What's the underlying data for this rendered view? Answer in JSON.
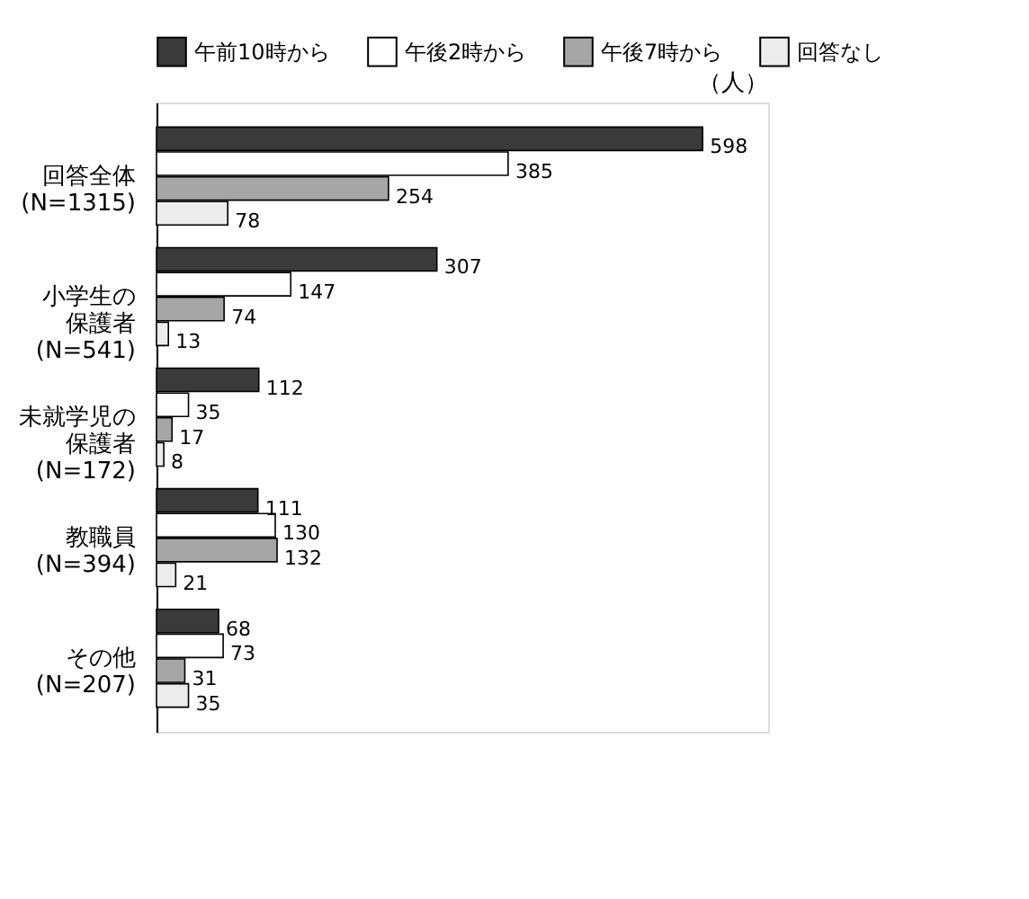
{
  "chart_data": {
    "type": "bar",
    "orientation": "horizontal",
    "categories": [
      "回答全体(N=1315)",
      "小学生の保護者(N=541)",
      "未就学児の保護者(N=172)",
      "教職員(N=394)",
      "その他(N=207)"
    ],
    "series": [
      {
        "name": "午前10時から",
        "color": "#3a3a3a",
        "values": [
          598,
          307,
          112,
          111,
          68
        ]
      },
      {
        "name": "午後2時から",
        "color": "#ffffff",
        "values": [
          385,
          147,
          35,
          130,
          73
        ]
      },
      {
        "name": "午後7時から",
        "color": "#a6a6a6",
        "values": [
          254,
          74,
          17,
          132,
          31
        ]
      },
      {
        "name": "回答なし",
        "color": "#ececec",
        "values": [
          78,
          13,
          8,
          21,
          35
        ]
      }
    ],
    "data_labels": true,
    "legend": "top",
    "annotations": [
      "（人）"
    ]
  }
}
